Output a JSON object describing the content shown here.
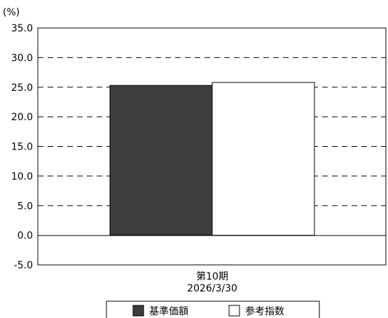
{
  "chart_data": {
    "type": "bar",
    "title": "",
    "ylabel": "(%)",
    "xlabel": "",
    "categories": [
      "第10期\n2026/3/30"
    ],
    "ylim": [
      -5.0,
      35.0
    ],
    "yticks": [
      "35.0",
      "30.0",
      "25.0",
      "20.0",
      "15.0",
      "10.0",
      "5.0",
      "0.0",
      "-5.0"
    ],
    "grid": "dashed horizontal",
    "legend_position": "bottom",
    "series": [
      {
        "name": "基準価額",
        "values": [
          25.3
        ],
        "color": "#3d3d3d"
      },
      {
        "name": "参考指数",
        "values": [
          25.8
        ],
        "color": "#ffffff"
      }
    ]
  }
}
